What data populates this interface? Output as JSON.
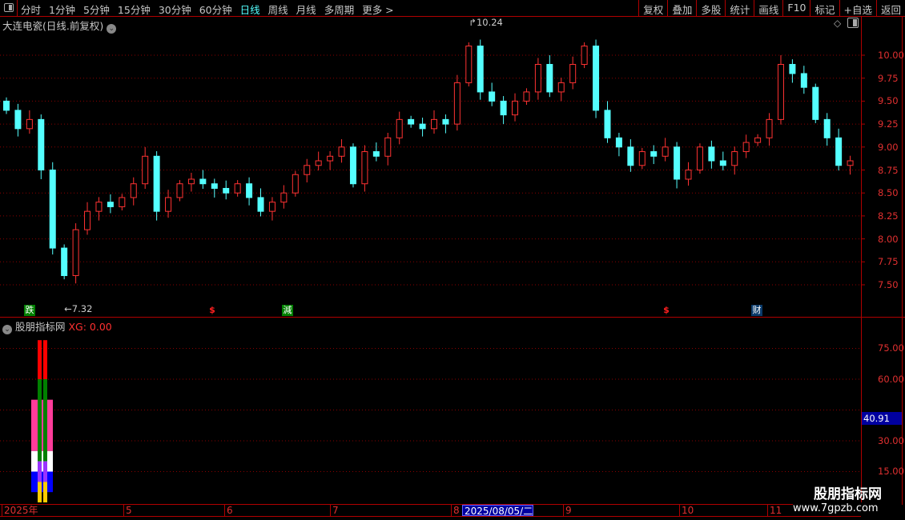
{
  "toolbar": {
    "periods": [
      "分时",
      "1分钟",
      "5分钟",
      "15分钟",
      "30分钟",
      "60分钟",
      "日线",
      "周线",
      "月线",
      "多周期",
      "更多 >"
    ],
    "active_period": "日线",
    "buttons": [
      "复权",
      "叠加",
      "多股",
      "统计",
      "画线",
      "F10",
      "标记",
      "+自选",
      "返回"
    ]
  },
  "chart_title": "大连电瓷(日线.前复权)",
  "price_axis": [
    "10.00",
    "9.75",
    "9.50",
    "9.25",
    "9.00",
    "8.75",
    "8.50",
    "8.25",
    "8.00",
    "7.75",
    "7.50"
  ],
  "annotations": {
    "high": "10.24",
    "low": "7.32"
  },
  "signals": [
    {
      "text": "跌",
      "color": "#008000"
    },
    {
      "text": "$",
      "color": "#ff2020"
    },
    {
      "text": "減",
      "color": "#008000"
    },
    {
      "text": "$",
      "color": "#ff2020"
    },
    {
      "text": "财",
      "color": "#0a3a6a"
    }
  ],
  "indicator": {
    "name": "股朋指标网",
    "xg": "XG: 0.00",
    "axis": [
      "75.00",
      "60.00",
      "30.00",
      "15.00"
    ],
    "current": "40.91"
  },
  "time_axis": [
    "2025年",
    "5",
    "6",
    "7",
    "8",
    "9",
    "10",
    "11"
  ],
  "cursor_date": "2025/08/05/二",
  "watermark": {
    "line1": "股朋指标网",
    "line2": "www.7gpzb.com"
  },
  "colors": {
    "up": "#ff3232",
    "down": "#54ffff",
    "grid": "#8b0000",
    "accent": "#54ffff"
  },
  "chart_data": {
    "type": "candlestick",
    "ylim": [
      7.3,
      10.3
    ],
    "closes": [
      9.4,
      9.2,
      9.3,
      8.75,
      7.9,
      7.6,
      8.1,
      8.3,
      8.4,
      8.35,
      8.45,
      8.6,
      8.9,
      8.3,
      8.45,
      8.6,
      8.65,
      8.6,
      8.55,
      8.5,
      8.6,
      8.45,
      8.3,
      8.4,
      8.5,
      8.7,
      8.8,
      8.85,
      8.9,
      9.0,
      8.6,
      8.95,
      8.9,
      9.1,
      9.3,
      9.25,
      9.2,
      9.3,
      9.25,
      9.7,
      10.1,
      9.6,
      9.5,
      9.35,
      9.5,
      9.6,
      9.9,
      9.6,
      9.7,
      9.9,
      10.1,
      9.4,
      9.1,
      9.0,
      8.8,
      8.95,
      8.9,
      9.0,
      8.65,
      8.75,
      9.0,
      8.85,
      8.8,
      8.95,
      9.05,
      9.1,
      9.3,
      9.9,
      9.8,
      9.65,
      9.3,
      9.1,
      8.8,
      8.85
    ]
  },
  "indicator_bars": {
    "outer": [
      {
        "from": 25,
        "to": 50,
        "color": "#ff3c9a"
      },
      {
        "from": 15,
        "to": 25,
        "color": "#ffffff"
      },
      {
        "from": 5,
        "to": 15,
        "color": "#0000ff"
      }
    ],
    "inner": [
      {
        "from": 60,
        "to": 79,
        "color": "#ff0000"
      },
      {
        "from": 20,
        "to": 60,
        "color": "#008000"
      },
      {
        "from": 10,
        "to": 20,
        "color": "#9933ff"
      },
      {
        "from": 0,
        "to": 10,
        "color": "#ffcc00"
      }
    ]
  }
}
